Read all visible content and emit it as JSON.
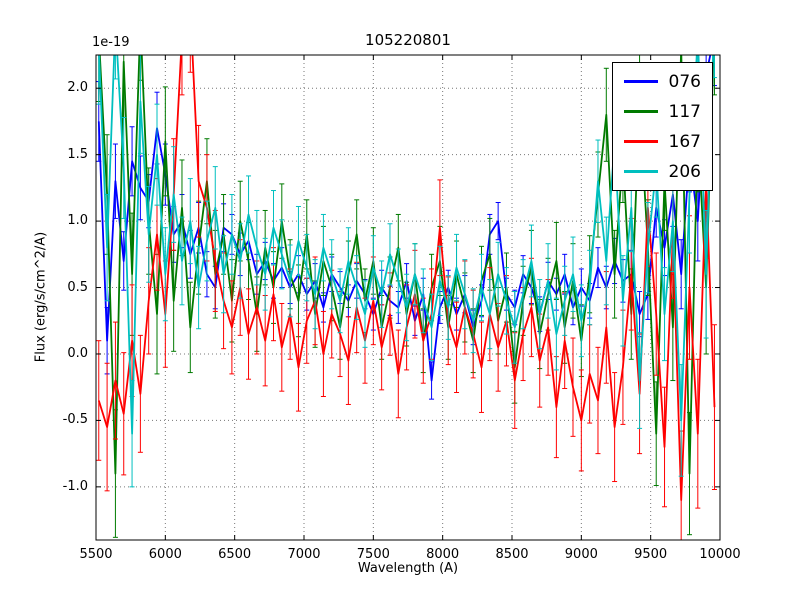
{
  "chart_data": {
    "type": "line",
    "title": "105220801",
    "xlabel": "Wavelength (A)",
    "ylabel": "Flux (erg/s/cm^2/A)",
    "offset_text": "1e-19",
    "xlim": [
      5500,
      10000
    ],
    "ylim": [
      -1.4,
      2.25
    ],
    "xticks": [
      5500,
      6000,
      6500,
      7000,
      7500,
      8000,
      8500,
      9000,
      9500,
      10000
    ],
    "xtick_labels": [
      "5500",
      "6000",
      "6500",
      "7000",
      "7500",
      "8000",
      "8500",
      "9000",
      "9500",
      "10000"
    ],
    "yticks": [
      2.0,
      1.5,
      1.0,
      0.5,
      0.0,
      -0.5,
      -1.0
    ],
    "ytick_labels": [
      "2.0",
      "1.5",
      "1.0",
      "0.5",
      "0.0",
      "-0.5",
      "-1.0"
    ],
    "grid": true,
    "grid_style": "dotted",
    "error_bars": true,
    "legend_position": "upper right",
    "x_start": 5520,
    "x_step": 60,
    "series": [
      {
        "name": "076",
        "color": "#0000ff",
        "y": [
          1.75,
          0.1,
          1.3,
          0.7,
          1.45,
          1.25,
          1.15,
          1.7,
          1.35,
          0.9,
          1.0,
          0.75,
          0.95,
          0.6,
          0.5,
          0.95,
          0.9,
          0.75,
          0.85,
          0.6,
          0.7,
          0.55,
          0.65,
          0.5,
          0.6,
          0.45,
          0.55,
          0.35,
          0.6,
          0.5,
          0.4,
          0.55,
          0.45,
          0.3,
          0.5,
          0.4,
          0.35,
          0.55,
          0.25,
          0.45,
          -0.2,
          0.35,
          0.5,
          0.3,
          0.45,
          0.2,
          0.4,
          0.9,
          1.0,
          0.45,
          0.35,
          0.6,
          0.5,
          0.3,
          0.55,
          0.45,
          0.6,
          0.35,
          0.5,
          0.4,
          0.65,
          0.5,
          0.7,
          0.55,
          0.6,
          0.3,
          0.45,
          1.1,
          0.8,
          1.2,
          0.6,
          1.5,
          1.0,
          2.1,
          2.4
        ],
        "yerr": [
          0.3,
          0.25,
          0.28,
          0.22,
          0.26,
          0.24,
          0.2,
          0.27,
          0.23,
          0.21,
          0.2,
          0.18,
          0.19,
          0.17,
          0.16,
          0.18,
          0.15,
          0.16,
          0.14,
          0.15,
          0.14,
          0.13,
          0.15,
          0.12,
          0.14,
          0.12,
          0.13,
          0.11,
          0.13,
          0.12,
          0.12,
          0.13,
          0.11,
          0.12,
          0.13,
          0.11,
          0.12,
          0.13,
          0.11,
          0.12,
          0.14,
          0.12,
          0.13,
          0.12,
          0.14,
          0.13,
          0.12,
          0.15,
          0.14,
          0.12,
          0.13,
          0.14,
          0.12,
          0.13,
          0.14,
          0.12,
          0.15,
          0.13,
          0.14,
          0.13,
          0.15,
          0.16,
          0.17,
          0.16,
          0.18,
          0.17,
          0.19,
          0.22,
          0.21,
          0.24,
          0.26,
          0.28,
          0.3,
          0.34,
          0.38
        ]
      },
      {
        "name": "117",
        "color": "#007a00",
        "y": [
          2.4,
          1.2,
          -0.9,
          2.2,
          0.6,
          2.5,
          1.0,
          0.3,
          1.6,
          0.4,
          1.1,
          0.2,
          0.8,
          1.3,
          0.6,
          0.9,
          0.4,
          1.0,
          0.7,
          0.3,
          0.8,
          0.5,
          1.0,
          0.6,
          0.4,
          0.9,
          0.3,
          0.7,
          0.5,
          0.2,
          0.6,
          0.9,
          0.4,
          0.7,
          0.2,
          0.5,
          0.8,
          0.3,
          0.6,
          0.1,
          0.5,
          0.7,
          0.2,
          0.6,
          0.35,
          0.1,
          0.55,
          0.75,
          0.25,
          0.5,
          -0.1,
          0.4,
          0.65,
          0.15,
          0.45,
          0.7,
          0.2,
          0.55,
          0.1,
          0.6,
          1.2,
          1.8,
          0.6,
          1.5,
          0.3,
          1.9,
          0.8,
          -0.6,
          1.3,
          0.2,
          2.3,
          -0.9,
          1.7,
          0.5,
          2.5
        ],
        "yerr": [
          0.5,
          0.45,
          0.48,
          0.42,
          0.46,
          0.44,
          0.4,
          0.45,
          0.41,
          0.38,
          0.36,
          0.34,
          0.35,
          0.32,
          0.33,
          0.3,
          0.31,
          0.3,
          0.29,
          0.28,
          0.28,
          0.27,
          0.28,
          0.26,
          0.27,
          0.26,
          0.25,
          0.26,
          0.25,
          0.24,
          0.25,
          0.26,
          0.24,
          0.25,
          0.24,
          0.23,
          0.25,
          0.24,
          0.23,
          0.24,
          0.25,
          0.26,
          0.24,
          0.25,
          0.26,
          0.24,
          0.26,
          0.27,
          0.25,
          0.26,
          0.27,
          0.26,
          0.28,
          0.26,
          0.27,
          0.29,
          0.27,
          0.28,
          0.27,
          0.29,
          0.32,
          0.35,
          0.33,
          0.36,
          0.34,
          0.38,
          0.36,
          0.39,
          0.37,
          0.4,
          0.44,
          0.46,
          0.48,
          0.5,
          0.55
        ]
      },
      {
        "name": "167",
        "color": "#ff0000",
        "y": [
          -0.35,
          -0.55,
          -0.2,
          -0.45,
          0.1,
          -0.3,
          0.4,
          0.9,
          0.3,
          1.2,
          2.4,
          2.6,
          1.3,
          1.1,
          0.7,
          0.4,
          0.2,
          0.5,
          0.15,
          0.35,
          0.1,
          0.45,
          0.05,
          0.3,
          -0.1,
          0.25,
          0.4,
          0.0,
          0.3,
          0.15,
          -0.05,
          0.35,
          0.1,
          0.4,
          0.05,
          0.3,
          -0.15,
          0.2,
          0.45,
          0.1,
          0.3,
          0.95,
          0.25,
          0.05,
          0.35,
          0.15,
          -0.1,
          0.3,
          0.05,
          0.25,
          -0.2,
          0.15,
          0.35,
          -0.05,
          0.2,
          -0.4,
          0.1,
          -0.25,
          -0.5,
          -0.15,
          -0.35,
          0.2,
          -0.55,
          -0.1,
          0.6,
          -0.3,
          1.1,
          0.3,
          -0.7,
          0.9,
          -1.1,
          0.5,
          -0.6,
          1.3,
          -0.4
        ],
        "yerr": [
          0.45,
          0.48,
          0.44,
          0.46,
          0.42,
          0.44,
          0.4,
          0.42,
          0.4,
          0.42,
          0.45,
          0.48,
          0.42,
          0.4,
          0.38,
          0.36,
          0.35,
          0.36,
          0.34,
          0.35,
          0.34,
          0.35,
          0.33,
          0.34,
          0.33,
          0.32,
          0.33,
          0.32,
          0.33,
          0.32,
          0.33,
          0.34,
          0.32,
          0.33,
          0.32,
          0.31,
          0.33,
          0.32,
          0.33,
          0.32,
          0.34,
          0.36,
          0.33,
          0.34,
          0.35,
          0.33,
          0.34,
          0.35,
          0.33,
          0.34,
          0.36,
          0.35,
          0.37,
          0.35,
          0.36,
          0.38,
          0.36,
          0.37,
          0.38,
          0.37,
          0.4,
          0.42,
          0.41,
          0.43,
          0.42,
          0.45,
          0.44,
          0.46,
          0.45,
          0.48,
          0.52,
          0.54,
          0.56,
          0.58,
          0.62
        ]
      },
      {
        "name": "206",
        "color": "#00bfbf",
        "y": [
          2.3,
          0.8,
          2.5,
          1.4,
          -0.6,
          1.9,
          0.9,
          1.5,
          0.6,
          1.2,
          0.7,
          1.0,
          0.5,
          0.85,
          1.1,
          0.6,
          0.9,
          0.7,
          1.05,
          0.8,
          0.6,
          0.95,
          0.75,
          0.55,
          0.85,
          0.65,
          0.45,
          0.8,
          0.6,
          0.4,
          0.7,
          0.5,
          0.3,
          0.65,
          0.45,
          0.75,
          0.55,
          0.35,
          0.6,
          0.4,
          0.2,
          0.55,
          0.35,
          0.65,
          0.45,
          0.25,
          0.5,
          0.3,
          0.6,
          0.4,
          0.2,
          0.45,
          0.7,
          0.3,
          0.55,
          0.15,
          0.4,
          0.6,
          0.25,
          0.5,
          1.3,
          0.7,
          1.6,
          0.4,
          1.1,
          -0.2,
          0.8,
          1.4,
          0.3,
          1.0,
          -0.5,
          1.2,
          2.4,
          0.6,
          2.6
        ],
        "yerr": [
          0.42,
          0.4,
          0.43,
          0.38,
          0.4,
          0.39,
          0.36,
          0.38,
          0.35,
          0.36,
          0.33,
          0.32,
          0.31,
          0.3,
          0.31,
          0.29,
          0.3,
          0.28,
          0.29,
          0.28,
          0.27,
          0.28,
          0.26,
          0.27,
          0.26,
          0.25,
          0.26,
          0.25,
          0.26,
          0.24,
          0.25,
          0.24,
          0.25,
          0.24,
          0.25,
          0.23,
          0.24,
          0.25,
          0.23,
          0.24,
          0.25,
          0.26,
          0.24,
          0.25,
          0.26,
          0.24,
          0.25,
          0.26,
          0.24,
          0.25,
          0.27,
          0.26,
          0.27,
          0.26,
          0.28,
          0.27,
          0.26,
          0.28,
          0.27,
          0.28,
          0.31,
          0.33,
          0.32,
          0.34,
          0.33,
          0.36,
          0.34,
          0.37,
          0.35,
          0.38,
          0.42,
          0.44,
          0.46,
          0.48,
          0.52
        ]
      }
    ]
  }
}
